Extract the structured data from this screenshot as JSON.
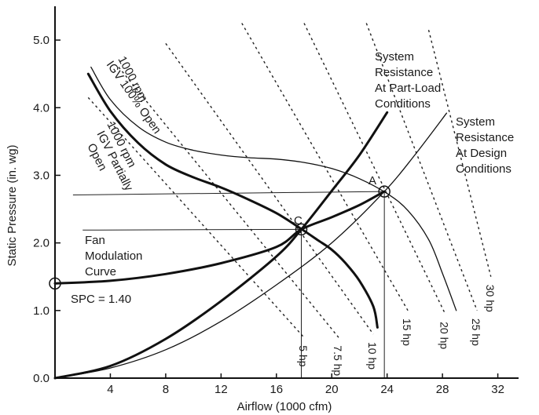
{
  "chart_data": {
    "type": "line",
    "xlabel": "Airflow (1000 cfm)",
    "ylabel": "Static Pressure (in. wg)",
    "xlim": [
      0,
      33.5
    ],
    "ylim": [
      0,
      5.5
    ],
    "x_ticks": [
      4,
      8,
      12,
      16,
      20,
      24,
      28,
      32
    ],
    "x_tick_labels": [
      "4",
      "8",
      "12",
      "16",
      "20",
      "24",
      "28",
      "32"
    ],
    "y_ticks": [
      0,
      1,
      2,
      3,
      4,
      5
    ],
    "y_tick_labels": [
      "0.0",
      "1.0",
      "2.0",
      "3.0",
      "4.0",
      "5.0"
    ],
    "grid": false,
    "series": [
      {
        "name": "1000 rpm IGV 100% Open",
        "style": "thin",
        "points": [
          [
            2.6,
            4.6
          ],
          [
            4,
            4.12
          ],
          [
            6,
            3.72
          ],
          [
            8,
            3.49
          ],
          [
            10,
            3.37
          ],
          [
            12,
            3.3
          ],
          [
            14,
            3.26
          ],
          [
            16,
            3.24
          ],
          [
            18,
            3.19
          ],
          [
            20,
            3.1
          ],
          [
            22,
            2.95
          ],
          [
            24,
            2.73
          ],
          [
            25.5,
            2.48
          ],
          [
            27,
            2.05
          ],
          [
            28,
            1.55
          ],
          [
            29,
            1.0
          ]
        ]
      },
      {
        "name": "1000 rpm IGV Partially Open",
        "style": "thick",
        "points": [
          [
            2.4,
            4.5
          ],
          [
            4,
            3.95
          ],
          [
            6,
            3.48
          ],
          [
            8,
            3.16
          ],
          [
            10,
            2.97
          ],
          [
            12,
            2.82
          ],
          [
            14,
            2.64
          ],
          [
            16,
            2.44
          ],
          [
            17.7,
            2.22
          ],
          [
            19,
            2.04
          ],
          [
            20,
            1.9
          ],
          [
            21,
            1.7
          ],
          [
            22,
            1.44
          ],
          [
            23,
            1.06
          ],
          [
            23.3,
            0.75
          ]
        ]
      },
      {
        "name": "System Resistance At Part-Load Conditions",
        "style": "thick",
        "points": [
          [
            0,
            0
          ],
          [
            4,
            0.18
          ],
          [
            8,
            0.58
          ],
          [
            12,
            1.14
          ],
          [
            16,
            1.8
          ],
          [
            17.8,
            2.2
          ],
          [
            20,
            2.77
          ],
          [
            22,
            3.3
          ],
          [
            24,
            3.93
          ]
        ]
      },
      {
        "name": "System Resistance At Design Conditions",
        "style": "thin",
        "points": [
          [
            0,
            0
          ],
          [
            4,
            0.15
          ],
          [
            8,
            0.42
          ],
          [
            12,
            0.84
          ],
          [
            16,
            1.38
          ],
          [
            20,
            2.0
          ],
          [
            23.8,
            2.76
          ],
          [
            26,
            3.3
          ],
          [
            28.3,
            3.92
          ]
        ]
      },
      {
        "name": "Fan Modulation Curve",
        "style": "thick",
        "points": [
          [
            0,
            1.4
          ],
          [
            4,
            1.44
          ],
          [
            8,
            1.54
          ],
          [
            12,
            1.7
          ],
          [
            16,
            1.94
          ],
          [
            17.8,
            2.2
          ],
          [
            20,
            2.38
          ],
          [
            22,
            2.56
          ],
          [
            23.8,
            2.76
          ]
        ]
      }
    ],
    "horsepower_lines": [
      {
        "label": "5 hp",
        "from": [
          2.4,
          4.15
        ],
        "to": [
          18,
          0.6
        ]
      },
      {
        "label": "7.5 hp",
        "from": [
          4.6,
          4.6
        ],
        "to": [
          20.5,
          0.6
        ]
      },
      {
        "label": "10 hp",
        "from": [
          8,
          4.95
        ],
        "to": [
          23,
          0.65
        ]
      },
      {
        "label": "15 hp",
        "from": [
          13.5,
          5.25
        ],
        "to": [
          25.5,
          1.0
        ]
      },
      {
        "label": "20 hp",
        "from": [
          18,
          5.25
        ],
        "to": [
          28.2,
          0.95
        ]
      },
      {
        "label": "25 hp",
        "from": [
          22.5,
          5.25
        ],
        "to": [
          30.5,
          1.0
        ]
      },
      {
        "label": "30 hp",
        "from": [
          27,
          5.15
        ],
        "to": [
          31.5,
          1.5
        ]
      }
    ],
    "reference_lines": [
      {
        "name": "horizontal-A",
        "from": [
          1.3,
          2.71
        ],
        "to": [
          23.8,
          2.76
        ]
      },
      {
        "name": "horizontal-C",
        "from": [
          2.0,
          2.19
        ],
        "to": [
          17.8,
          2.2
        ]
      },
      {
        "name": "vertical-A",
        "from": [
          23.8,
          2.76
        ],
        "to": [
          23.8,
          0
        ]
      },
      {
        "name": "vertical-C",
        "from": [
          17.8,
          2.2
        ],
        "to": [
          17.8,
          0
        ]
      }
    ],
    "points": [
      {
        "name": "A",
        "x": 23.8,
        "y": 2.76
      },
      {
        "name": "C",
        "x": 17.8,
        "y": 2.2
      },
      {
        "name": "SPC",
        "x": 0,
        "y": 1.4
      }
    ],
    "annotations": {
      "igv_open_1": "1000 rpm",
      "igv_open_2": "IGV 100% Open",
      "igv_partial_1": "1000 rpm",
      "igv_partial_2": "IGV Partially",
      "igv_partial_3": "Open",
      "part_load_1": "System",
      "part_load_2": "Resistance",
      "part_load_3": "At Part-Load",
      "part_load_4": "Conditions",
      "design_1": "System",
      "design_2": "Resistance",
      "design_3": "At Design",
      "design_4": "Conditions",
      "fan_mod_1": "Fan",
      "fan_mod_2": "Modulation",
      "fan_mod_3": "Curve",
      "spc": "SPC = 1.40",
      "point_a": "A",
      "point_c": "C"
    }
  }
}
